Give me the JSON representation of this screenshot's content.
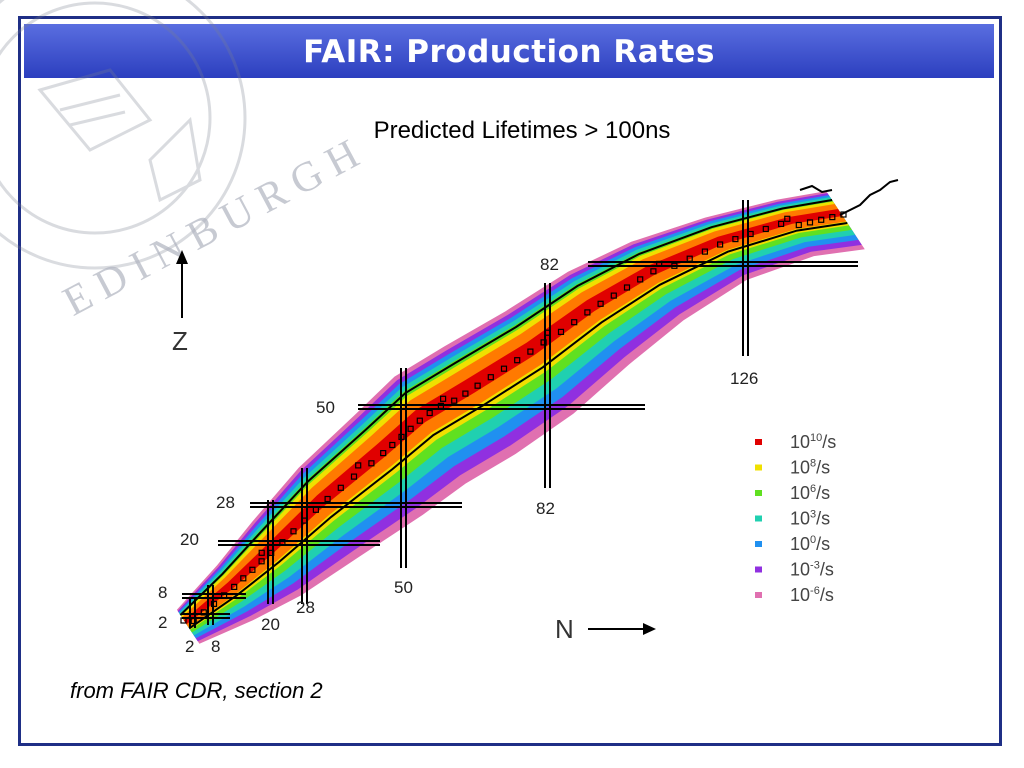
{
  "slide": {
    "title": "FAIR: Production Rates",
    "subtitle": "Predicted Lifetimes > 100ns",
    "caption": "from FAIR CDR, section 2"
  },
  "watermark": {
    "text": "EDINBURGH",
    "icon": "university-crest-icon"
  },
  "chart": {
    "type": "nuclide-chart",
    "y_axis_label": "Z",
    "x_axis_label": "N",
    "z_magic_labels": [
      "2",
      "8",
      "20",
      "28",
      "50",
      "82"
    ],
    "n_magic_labels": [
      "2",
      "8",
      "20",
      "28",
      "50",
      "82",
      "126"
    ],
    "legend": [
      {
        "mantissa": "10",
        "exponent": "10",
        "unit": "/s",
        "color": "#e00000"
      },
      {
        "mantissa": "10",
        "exponent": "8",
        "unit": "/s",
        "color": "#f0e000"
      },
      {
        "mantissa": "10",
        "exponent": "6",
        "unit": "/s",
        "color": "#60e020"
      },
      {
        "mantissa": "10",
        "exponent": "3",
        "unit": "/s",
        "color": "#20d0b0"
      },
      {
        "mantissa": "10",
        "exponent": "0",
        "unit": "/s",
        "color": "#2090f0"
      },
      {
        "mantissa": "10",
        "exponent": "-3",
        "unit": "/s",
        "color": "#9030e0"
      },
      {
        "mantissa": "10",
        "exponent": "-6",
        "unit": "/s",
        "color": "#e070b0"
      }
    ]
  }
}
